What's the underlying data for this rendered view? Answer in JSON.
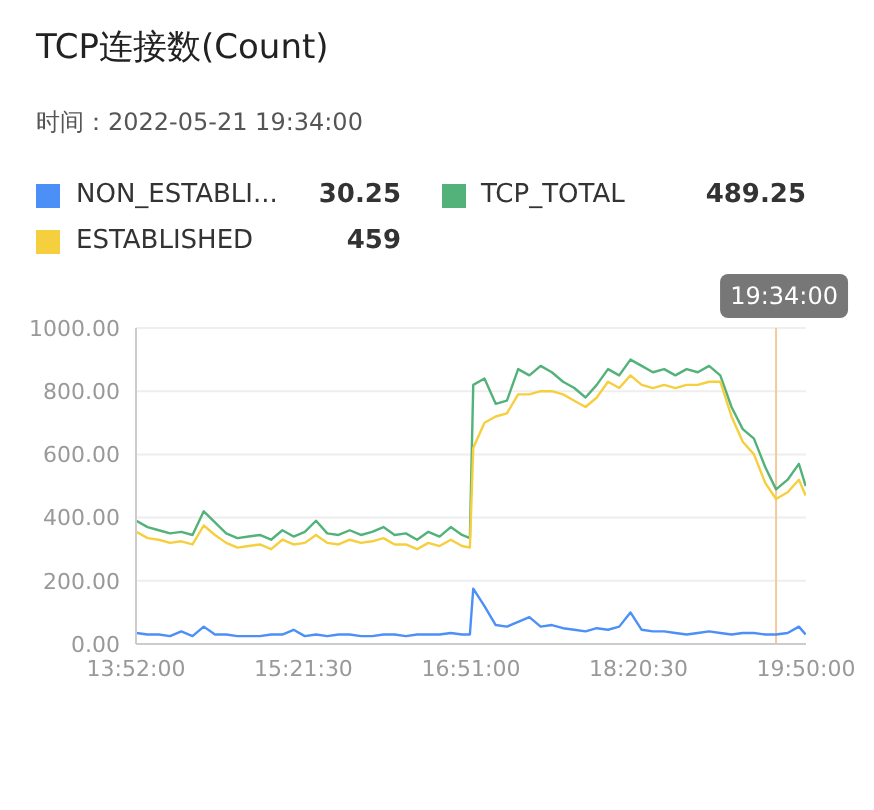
{
  "chart_data": {
    "type": "line",
    "title": "TCP连接数(Count)",
    "subtitle": "时间：2022-05-21 19:34:00",
    "x": [
      13.87,
      13.97,
      14.07,
      14.17,
      14.27,
      14.37,
      14.47,
      14.57,
      14.67,
      14.77,
      14.87,
      14.97,
      15.07,
      15.17,
      15.27,
      15.37,
      15.47,
      15.57,
      15.67,
      15.77,
      15.87,
      15.97,
      16.07,
      16.17,
      16.27,
      16.37,
      16.47,
      16.57,
      16.67,
      16.77,
      16.84,
      16.87,
      16.97,
      17.07,
      17.17,
      17.27,
      17.37,
      17.47,
      17.57,
      17.67,
      17.77,
      17.87,
      17.97,
      18.07,
      18.17,
      18.27,
      18.37,
      18.47,
      18.57,
      18.67,
      18.77,
      18.87,
      18.97,
      19.07,
      19.17,
      19.27,
      19.37,
      19.47,
      19.5667,
      19.67,
      19.77,
      19.83
    ],
    "series": [
      {
        "name": "NON_ESTABLI...",
        "color": "#4c8ff7",
        "values": [
          35,
          30,
          30,
          25,
          40,
          25,
          55,
          30,
          30,
          25,
          25,
          25,
          30,
          30,
          45,
          25,
          30,
          25,
          30,
          30,
          25,
          25,
          30,
          30,
          25,
          30,
          30,
          30,
          35,
          30,
          30,
          175,
          120,
          60,
          55,
          70,
          85,
          55,
          60,
          50,
          45,
          40,
          50,
          45,
          55,
          100,
          45,
          40,
          40,
          35,
          30,
          35,
          40,
          35,
          30,
          35,
          35,
          30,
          30.25,
          35,
          55,
          30
        ]
      },
      {
        "name": "TCP_TOTAL",
        "color": "#52b27a",
        "values": [
          390,
          370,
          360,
          350,
          355,
          345,
          420,
          385,
          350,
          335,
          340,
          345,
          330,
          360,
          340,
          355,
          390,
          350,
          345,
          360,
          345,
          355,
          370,
          345,
          350,
          330,
          355,
          340,
          370,
          345,
          335,
          820,
          840,
          760,
          770,
          870,
          850,
          880,
          860,
          830,
          810,
          780,
          820,
          870,
          850,
          900,
          880,
          860,
          870,
          850,
          870,
          860,
          880,
          850,
          750,
          680,
          650,
          560,
          489.25,
          520,
          570,
          500
        ]
      },
      {
        "name": "ESTABLISHED",
        "color": "#f6cf3e",
        "values": [
          355,
          335,
          330,
          320,
          325,
          315,
          375,
          345,
          320,
          305,
          310,
          315,
          300,
          330,
          315,
          320,
          345,
          320,
          315,
          330,
          320,
          325,
          335,
          315,
          315,
          300,
          320,
          310,
          330,
          310,
          305,
          620,
          700,
          720,
          730,
          790,
          790,
          800,
          800,
          790,
          770,
          750,
          780,
          830,
          810,
          850,
          820,
          810,
          820,
          810,
          820,
          820,
          830,
          830,
          720,
          640,
          600,
          510,
          459,
          480,
          520,
          470
        ]
      }
    ],
    "annotations": [
      "30.25",
      "489.25",
      "459",
      "19:34:00"
    ],
    "ref_lines": [
      {
        "axis": "x",
        "value": 19.566667,
        "color": "#f5c99a"
      }
    ],
    "xlim": [
      13.8667,
      19.8333
    ],
    "xticks": [
      {
        "value": 13.8667,
        "label": "13:52:00"
      },
      {
        "value": 15.3583,
        "label": "15:21:30"
      },
      {
        "value": 16.85,
        "label": "16:51:00"
      },
      {
        "value": 18.3417,
        "label": "18:20:30"
      },
      {
        "value": 19.8333,
        "label": "19:50:00"
      }
    ],
    "ylim": [
      0,
      1000
    ],
    "yticks": [
      {
        "value": 0,
        "label": "0.00"
      },
      {
        "value": 200,
        "label": "200.00"
      },
      {
        "value": 400,
        "label": "400.00"
      },
      {
        "value": 600,
        "label": "600.00"
      },
      {
        "value": 800,
        "label": "800.00"
      },
      {
        "value": 1000,
        "label": "1000.00"
      }
    ],
    "grid": "y",
    "legend": "top",
    "marker": "none",
    "line_style": "solid"
  }
}
